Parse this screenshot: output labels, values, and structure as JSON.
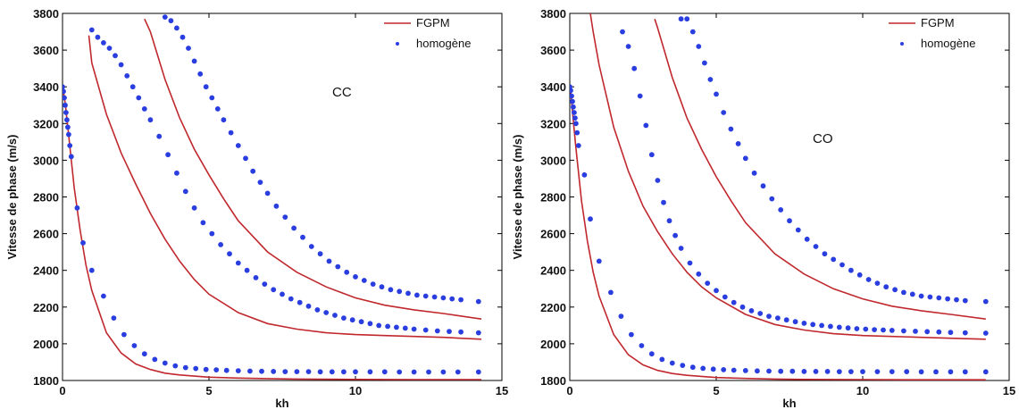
{
  "chart_data": [
    {
      "type": "line",
      "title": "",
      "xlabel": "kh",
      "ylabel": "Vitesse de phase (m/s)",
      "xlim": [
        0,
        15
      ],
      "ylim": [
        1800,
        3800
      ],
      "xticks": [
        0,
        5,
        10,
        15
      ],
      "yticks": [
        1800,
        2000,
        2200,
        2400,
        2600,
        2800,
        3000,
        3200,
        3400,
        3600,
        3800
      ],
      "annotation": "CC",
      "legend_position": "top-right",
      "legend": [
        "FGPM",
        "homogène"
      ],
      "colors": {
        "fgpm": "#c0282d",
        "homogene": "#2a3ee0"
      },
      "series": [
        {
          "name": "FGPM",
          "style": "line",
          "curves": [
            {
              "x": [
                0.02,
                0.1,
                0.2,
                0.4,
                0.6,
                0.8,
                1.0,
                1.5,
                2.0,
                2.5,
                3.0,
                3.5,
                4.0,
                5.0,
                6.0,
                7.0,
                8.0,
                10.0,
                12.0,
                14.3
              ],
              "y": [
                3390,
                3300,
                3150,
                2850,
                2620,
                2430,
                2290,
                2060,
                1950,
                1890,
                1860,
                1840,
                1830,
                1818,
                1813,
                1810,
                1808,
                1806,
                1805,
                1805
              ]
            },
            {
              "x": [
                0.9,
                1.0,
                1.5,
                2.0,
                2.5,
                3.0,
                3.5,
                4.0,
                4.5,
                5.0,
                6.0,
                7.0,
                8.0,
                9.0,
                10.0,
                11.0,
                12.0,
                13.0,
                14.3
              ],
              "y": [
                3680,
                3530,
                3250,
                3040,
                2870,
                2710,
                2570,
                2450,
                2350,
                2270,
                2170,
                2110,
                2080,
                2060,
                2050,
                2045,
                2040,
                2035,
                2025
              ]
            },
            {
              "x": [
                2.8,
                3.0,
                3.5,
                4.0,
                4.5,
                5.0,
                5.5,
                6.0,
                7.0,
                8.0,
                9.0,
                10.0,
                11.0,
                12.0,
                13.0,
                14.3
              ],
              "y": [
                3770,
                3700,
                3440,
                3230,
                3060,
                2920,
                2790,
                2670,
                2500,
                2390,
                2310,
                2250,
                2210,
                2185,
                2165,
                2135
              ]
            }
          ]
        },
        {
          "name": "homogène",
          "style": "dots",
          "curves": [
            {
              "x": [
                0.0,
                0.03,
                0.06,
                0.09,
                0.12,
                0.15,
                0.18,
                0.21,
                0.25,
                0.3,
                0.5,
                0.7,
                1.0,
                1.4,
                1.75,
                2.1,
                2.45,
                2.8,
                3.15,
                3.5,
                3.85,
                4.2,
                4.55,
                4.9,
                5.25,
                5.6,
                6.0,
                6.4,
                6.8,
                7.2,
                7.6,
                8.0,
                8.4,
                8.8,
                9.2,
                9.6,
                10.0,
                10.5,
                11.0,
                11.5,
                12.0,
                12.5,
                13.0,
                13.5,
                14.2
              ],
              "y": [
                3400,
                3375,
                3340,
                3300,
                3260,
                3220,
                3180,
                3140,
                3080,
                3020,
                2740,
                2550,
                2400,
                2260,
                2140,
                2050,
                1990,
                1945,
                1915,
                1895,
                1880,
                1870,
                1865,
                1860,
                1858,
                1855,
                1853,
                1851,
                1850,
                1849,
                1848,
                1848,
                1848,
                1847,
                1847,
                1847,
                1847,
                1847,
                1847,
                1846,
                1846,
                1846,
                1846,
                1846,
                1846
              ]
            },
            {
              "x": [
                1.0,
                1.2,
                1.4,
                1.6,
                1.8,
                2.0,
                2.2,
                2.4,
                2.6,
                2.8,
                3.0,
                3.3,
                3.6,
                3.9,
                4.2,
                4.5,
                4.8,
                5.1,
                5.4,
                5.7,
                6.0,
                6.3,
                6.6,
                6.9,
                7.2,
                7.5,
                7.8,
                8.1,
                8.4,
                8.7,
                9.0,
                9.3,
                9.6,
                9.9,
                10.2,
                10.5,
                10.8,
                11.1,
                11.4,
                11.7,
                12.0,
                12.4,
                12.8,
                13.2,
                13.6,
                14.2
              ],
              "y": [
                3710,
                3670,
                3640,
                3610,
                3570,
                3520,
                3460,
                3400,
                3340,
                3280,
                3220,
                3130,
                3030,
                2930,
                2830,
                2740,
                2660,
                2600,
                2540,
                2490,
                2440,
                2400,
                2360,
                2325,
                2295,
                2270,
                2245,
                2225,
                2205,
                2185,
                2170,
                2155,
                2140,
                2130,
                2120,
                2110,
                2100,
                2095,
                2090,
                2085,
                2080,
                2075,
                2070,
                2067,
                2064,
                2060
              ]
            },
            {
              "x": [
                3.5,
                3.7,
                3.9,
                4.1,
                4.3,
                4.5,
                4.7,
                4.9,
                5.1,
                5.3,
                5.5,
                5.75,
                6.0,
                6.25,
                6.5,
                6.75,
                7.0,
                7.3,
                7.6,
                7.9,
                8.2,
                8.5,
                8.8,
                9.1,
                9.4,
                9.7,
                10.0,
                10.3,
                10.6,
                10.9,
                11.2,
                11.5,
                11.8,
                12.1,
                12.4,
                12.7,
                13.0,
                13.3,
                13.6,
                14.2
              ],
              "y": [
                3780,
                3760,
                3720,
                3670,
                3610,
                3540,
                3470,
                3400,
                3340,
                3280,
                3220,
                3150,
                3080,
                3010,
                2940,
                2880,
                2820,
                2750,
                2690,
                2630,
                2580,
                2530,
                2490,
                2450,
                2420,
                2390,
                2365,
                2345,
                2325,
                2310,
                2295,
                2285,
                2275,
                2265,
                2260,
                2255,
                2250,
                2245,
                2240,
                2230
              ]
            }
          ]
        }
      ]
    },
    {
      "type": "line",
      "title": "",
      "xlabel": "kh",
      "ylabel": "Vitesse de phase (m/s)",
      "xlim": [
        0,
        15
      ],
      "ylim": [
        1800,
        3800
      ],
      "xticks": [
        0,
        5,
        10,
        15
      ],
      "yticks": [
        1800,
        2000,
        2200,
        2400,
        2600,
        2800,
        3000,
        3200,
        3400,
        3600,
        3800
      ],
      "annotation": "CO",
      "legend_position": "top-right",
      "legend": [
        "FGPM",
        "homogène"
      ],
      "colors": {
        "fgpm": "#c0282d",
        "homogene": "#2a3ee0"
      },
      "series": [
        {
          "name": "FGPM",
          "style": "line",
          "curves": [
            {
              "x": [
                0.02,
                0.1,
                0.2,
                0.4,
                0.6,
                0.8,
                1.0,
                1.5,
                2.0,
                2.5,
                3.0,
                3.5,
                4.0,
                5.0,
                6.0,
                7.0,
                8.0,
                10.0,
                12.0,
                14.2
              ],
              "y": [
                3390,
                3250,
                3080,
                2780,
                2560,
                2390,
                2260,
                2050,
                1940,
                1885,
                1855,
                1838,
                1828,
                1816,
                1811,
                1808,
                1806,
                1805,
                1804,
                1804
              ]
            },
            {
              "x": [
                0.7,
                0.8,
                1.0,
                1.5,
                2.0,
                2.5,
                3.0,
                3.5,
                4.0,
                4.5,
                5.0,
                6.0,
                7.0,
                8.0,
                9.0,
                10.0,
                11.0,
                12.0,
                13.0,
                14.2
              ],
              "y": [
                3800,
                3700,
                3520,
                3180,
                2940,
                2750,
                2610,
                2490,
                2390,
                2310,
                2250,
                2160,
                2105,
                2075,
                2055,
                2045,
                2040,
                2035,
                2030,
                2025
              ]
            },
            {
              "x": [
                2.9,
                3.0,
                3.5,
                4.0,
                4.5,
                5.0,
                5.5,
                6.0,
                7.0,
                8.0,
                9.0,
                10.0,
                11.0,
                12.0,
                13.0,
                14.2
              ],
              "y": [
                3770,
                3720,
                3450,
                3230,
                3060,
                2910,
                2780,
                2660,
                2490,
                2380,
                2300,
                2245,
                2205,
                2180,
                2160,
                2135
              ]
            }
          ]
        },
        {
          "name": "homogène",
          "style": "dots",
          "curves": [
            {
              "x": [
                0.0,
                0.03,
                0.06,
                0.09,
                0.12,
                0.15,
                0.18,
                0.21,
                0.25,
                0.3,
                0.5,
                0.7,
                1.0,
                1.4,
                1.75,
                2.1,
                2.45,
                2.8,
                3.15,
                3.5,
                3.85,
                4.2,
                4.55,
                4.9,
                5.25,
                5.6,
                6.0,
                6.4,
                6.8,
                7.2,
                7.6,
                8.0,
                8.4,
                8.8,
                9.2,
                9.6,
                10.0,
                10.5,
                11.0,
                11.5,
                12.0,
                12.5,
                13.0,
                13.5,
                14.2
              ],
              "y": [
                3400,
                3380,
                3350,
                3320,
                3290,
                3260,
                3230,
                3200,
                3150,
                3080,
                2920,
                2680,
                2450,
                2280,
                2150,
                2050,
                1990,
                1945,
                1915,
                1895,
                1882,
                1872,
                1866,
                1862,
                1859,
                1856,
                1854,
                1852,
                1851,
                1850,
                1850,
                1849,
                1849,
                1849,
                1848,
                1848,
                1848,
                1848,
                1848,
                1848,
                1847,
                1847,
                1847,
                1847,
                1847
              ]
            },
            {
              "x": [
                1.8,
                2.0,
                2.2,
                2.4,
                2.6,
                2.8,
                3.0,
                3.2,
                3.4,
                3.6,
                3.8,
                4.1,
                4.4,
                4.7,
                5.0,
                5.3,
                5.6,
                5.9,
                6.2,
                6.5,
                6.8,
                7.1,
                7.4,
                7.7,
                8.0,
                8.3,
                8.6,
                8.9,
                9.2,
                9.5,
                9.8,
                10.1,
                10.4,
                10.7,
                11.0,
                11.4,
                11.8,
                12.2,
                12.6,
                13.0,
                13.5,
                14.2
              ],
              "y": [
                3700,
                3620,
                3500,
                3350,
                3190,
                3030,
                2890,
                2770,
                2670,
                2590,
                2520,
                2440,
                2380,
                2330,
                2290,
                2255,
                2225,
                2200,
                2180,
                2165,
                2150,
                2140,
                2130,
                2120,
                2112,
                2105,
                2100,
                2095,
                2090,
                2086,
                2082,
                2080,
                2077,
                2075,
                2073,
                2070,
                2068,
                2066,
                2064,
                2062,
                2060,
                2058
              ]
            },
            {
              "x": [
                3.8,
                4.0,
                4.2,
                4.4,
                4.6,
                4.8,
                5.0,
                5.25,
                5.5,
                5.75,
                6.0,
                6.3,
                6.6,
                6.9,
                7.2,
                7.5,
                7.8,
                8.1,
                8.4,
                8.7,
                9.0,
                9.3,
                9.6,
                9.9,
                10.2,
                10.5,
                10.8,
                11.1,
                11.4,
                11.7,
                12.0,
                12.3,
                12.6,
                12.9,
                13.2,
                13.5,
                14.2
              ],
              "y": [
                3770,
                3770,
                3700,
                3620,
                3530,
                3440,
                3360,
                3260,
                3170,
                3090,
                3010,
                2930,
                2860,
                2790,
                2730,
                2670,
                2620,
                2570,
                2530,
                2490,
                2460,
                2430,
                2400,
                2375,
                2350,
                2330,
                2310,
                2295,
                2280,
                2270,
                2260,
                2255,
                2250,
                2245,
                2240,
                2235,
                2230
              ]
            }
          ]
        }
      ]
    }
  ]
}
